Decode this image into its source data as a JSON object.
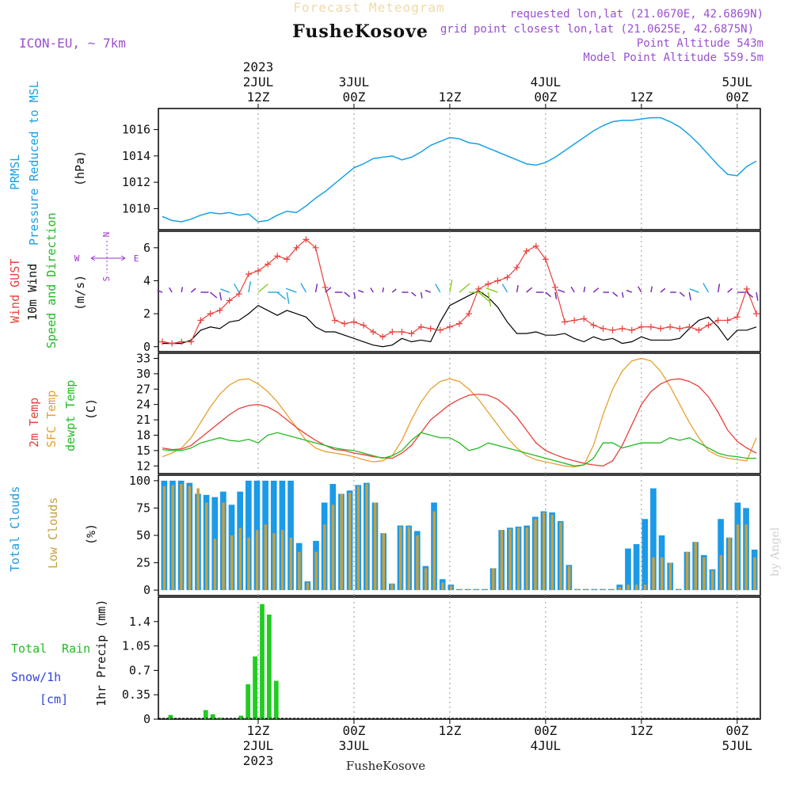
{
  "header": {
    "product": "Forecast Meteogram",
    "location": "FusheKosove",
    "model": "ICON-EU, ~ 7km",
    "requested": "requested lon,lat (21.0670E, 42.6869N)",
    "closest": "grid point closest lon,lat (21.0625E, 42.6875N)",
    "altitude": "Point Altitude 543m",
    "model_altitude": "Model Point Altitude 559.5m",
    "footer_location": "FusheKosove",
    "credit": "by Angel"
  },
  "colors": {
    "pressure": "#1aa0e6",
    "gust": "#e8403c",
    "wind": "#000000",
    "temp": "#e8403c",
    "sfc": "#e8a030",
    "dew": "#22bb22",
    "total_clouds": "#1a9ae8",
    "low_clouds": "#c8a040",
    "rain": "#22cc22",
    "snow": "#3344dd",
    "compass": "#9933cc"
  },
  "time_axis": {
    "hours_start": 0,
    "hours_end": 62,
    "top_ticks": [
      {
        "h": 10,
        "l1": "2023",
        "l2": "2JUL",
        "l3": "12Z"
      },
      {
        "h": 20,
        "l1": "",
        "l2": "3JUL",
        "l3": "00Z"
      },
      {
        "h": 30,
        "l1": "",
        "l2": "",
        "l3": "12Z"
      },
      {
        "h": 40,
        "l1": "",
        "l2": "4JUL",
        "l3": "00Z"
      },
      {
        "h": 50,
        "l1": "",
        "l2": "",
        "l3": "12Z"
      },
      {
        "h": 60,
        "l1": "",
        "l2": "5JUL",
        "l3": "00Z"
      }
    ],
    "bottom_ticks": [
      {
        "h": 10,
        "l1": "12Z",
        "l2": "2JUL",
        "l3": "2023"
      },
      {
        "h": 20,
        "l1": "00Z",
        "l2": "3JUL",
        "l3": ""
      },
      {
        "h": 30,
        "l1": "12Z",
        "l2": "",
        "l3": ""
      },
      {
        "h": 40,
        "l1": "00Z",
        "l2": "4JUL",
        "l3": ""
      },
      {
        "h": 50,
        "l1": "12Z",
        "l2": "",
        "l3": ""
      },
      {
        "h": 60,
        "l1": "00Z",
        "l2": "5JUL",
        "l3": ""
      }
    ]
  },
  "panels": {
    "pressure": {
      "labels": [
        "PRMSL",
        "Pressure Reduced to MSL",
        "(hPa)"
      ],
      "ticks": [
        "1010",
        "1012",
        "1014",
        "1016"
      ]
    },
    "wind": {
      "labels": [
        "Wind GUST",
        "10m Wind",
        "Speed and Direction",
        "(m/s)"
      ],
      "ticks": [
        "0",
        "2",
        "4",
        "6"
      ],
      "compass": {
        "n": "N",
        "s": "S",
        "w": "W",
        "e": "E"
      }
    },
    "temp": {
      "labels": [
        "2m Temp",
        "SFC Temp",
        "dewpt Temp",
        "(C)"
      ],
      "ticks": [
        "12",
        "15",
        "18",
        "21",
        "24",
        "27",
        "30",
        "33"
      ]
    },
    "cloud": {
      "labels": [
        "Total Clouds",
        "Low Clouds",
        "(%)"
      ],
      "ticks": [
        "0",
        "25",
        "50",
        "75",
        "100"
      ]
    },
    "precip": {
      "labels": [
        "Total",
        "Rain",
        "Snow/1h",
        "[cm]",
        "1hr Precip (mm)"
      ],
      "ticks": [
        "0",
        "0.35",
        "0.7",
        "1.05",
        "1.4"
      ]
    }
  },
  "chart_data": {
    "type": "meteogram",
    "title": "Forecast Meteogram FusheKosove",
    "x_unit": "hours from 2 JUL 2023 02Z",
    "pressure": {
      "name": "PRMSL (hPa)",
      "ylim": [
        1008.4,
        1017.6
      ],
      "x": [
        0,
        1,
        2,
        3,
        4,
        5,
        6,
        7,
        8,
        9,
        10,
        11,
        12,
        13,
        14,
        15,
        16,
        17,
        18,
        19,
        20,
        21,
        22,
        23,
        24,
        25,
        26,
        27,
        28,
        29,
        30,
        31,
        32,
        33,
        34,
        35,
        36,
        37,
        38,
        39,
        40,
        41,
        42,
        43,
        44,
        45,
        46,
        47,
        48,
        49,
        50,
        51,
        52,
        53,
        54,
        55,
        56,
        57,
        58,
        59,
        60,
        61,
        62
      ],
      "values": [
        1009.4,
        1009.1,
        1009.0,
        1009.2,
        1009.5,
        1009.7,
        1009.6,
        1009.7,
        1009.5,
        1009.6,
        1009.0,
        1009.1,
        1009.5,
        1009.8,
        1009.7,
        1010.2,
        1010.8,
        1011.3,
        1011.9,
        1012.5,
        1013.1,
        1013.4,
        1013.8,
        1013.9,
        1014.0,
        1013.7,
        1013.9,
        1014.3,
        1014.8,
        1015.1,
        1015.4,
        1015.3,
        1015.0,
        1014.9,
        1014.6,
        1014.3,
        1014.0,
        1013.7,
        1013.4,
        1013.3,
        1013.5,
        1013.9,
        1014.4,
        1014.9,
        1015.4,
        1015.9,
        1016.3,
        1016.6,
        1016.7,
        1016.7,
        1016.8,
        1016.9,
        1016.9,
        1016.6,
        1016.2,
        1015.6,
        1014.9,
        1014.1,
        1013.3,
        1012.6,
        1012.5,
        1013.2,
        1013.6
      ]
    },
    "wind": {
      "ylim": [
        -0.3,
        7.0
      ],
      "x": [
        0,
        1,
        2,
        3,
        4,
        5,
        6,
        7,
        8,
        9,
        10,
        11,
        12,
        13,
        14,
        15,
        16,
        17,
        18,
        19,
        20,
        21,
        22,
        23,
        24,
        25,
        26,
        27,
        28,
        29,
        30,
        31,
        32,
        33,
        34,
        35,
        36,
        37,
        38,
        39,
        40,
        41,
        42,
        43,
        44,
        45,
        46,
        47,
        48,
        49,
        50,
        51,
        52,
        53,
        54,
        55,
        56,
        57,
        58,
        59,
        60,
        61,
        62
      ],
      "wind_speed": [
        0.2,
        0.2,
        0.2,
        0.4,
        1.0,
        1.2,
        1.1,
        1.5,
        1.6,
        2.0,
        2.5,
        2.2,
        1.9,
        2.2,
        2.0,
        1.8,
        1.2,
        0.9,
        0.9,
        0.7,
        0.5,
        0.3,
        0.1,
        0.0,
        0.1,
        0.5,
        0.3,
        0.4,
        0.3,
        1.5,
        2.5,
        2.8,
        3.1,
        3.4,
        3.0,
        2.4,
        1.5,
        0.8,
        0.8,
        0.9,
        0.7,
        0.7,
        0.8,
        0.5,
        0.3,
        0.6,
        0.4,
        0.5,
        0.2,
        0.3,
        0.6,
        0.4,
        0.4,
        0.4,
        0.5,
        1.1,
        1.6,
        1.8,
        1.2,
        0.4,
        1.0,
        1.0,
        1.2
      ],
      "gust": [
        0.3,
        0.2,
        0.3,
        0.3,
        1.6,
        2.0,
        2.2,
        2.8,
        3.2,
        4.4,
        4.6,
        5.0,
        5.5,
        5.3,
        6.0,
        6.5,
        6.0,
        3.6,
        1.6,
        1.4,
        1.5,
        1.3,
        0.9,
        0.6,
        0.9,
        0.9,
        0.8,
        1.2,
        1.1,
        1.0,
        1.2,
        1.4,
        2.0,
        3.5,
        3.8,
        4.0,
        4.2,
        4.8,
        5.8,
        6.1,
        5.3,
        3.6,
        1.5,
        1.6,
        1.7,
        1.3,
        1.1,
        1.0,
        1.1,
        1.0,
        1.2,
        1.2,
        1.1,
        1.2,
        1.1,
        1.2,
        1.0,
        1.3,
        1.6,
        1.6,
        1.8,
        3.5,
        2.0
      ]
    },
    "temperature": {
      "ylim": [
        10.5,
        34.0
      ],
      "x": [
        0,
        1,
        2,
        3,
        4,
        5,
        6,
        7,
        8,
        9,
        10,
        11,
        12,
        13,
        14,
        15,
        16,
        17,
        18,
        19,
        20,
        21,
        22,
        23,
        24,
        25,
        26,
        27,
        28,
        29,
        30,
        31,
        32,
        33,
        34,
        35,
        36,
        37,
        38,
        39,
        40,
        41,
        42,
        43,
        44,
        45,
        46,
        47,
        48,
        49,
        50,
        51,
        52,
        53,
        54,
        55,
        56,
        57,
        58,
        59,
        60,
        61,
        62
      ],
      "t2m": [
        15.5,
        15.2,
        15.3,
        16.0,
        17.5,
        19.0,
        20.5,
        22.0,
        23.2,
        23.8,
        24.0,
        23.5,
        22.5,
        21.0,
        19.5,
        18.2,
        17.0,
        16.0,
        15.2,
        15.0,
        14.5,
        14.2,
        13.8,
        13.6,
        13.5,
        14.5,
        16.0,
        18.5,
        21.0,
        22.5,
        24.0,
        25.0,
        25.8,
        26.0,
        25.8,
        25.0,
        23.5,
        21.5,
        19.0,
        16.5,
        15.0,
        14.2,
        13.5,
        13.0,
        12.5,
        12.2,
        12.0,
        13.0,
        16.0,
        20.0,
        24.0,
        26.5,
        28.0,
        28.8,
        29.0,
        28.5,
        27.5,
        25.5,
        22.5,
        19.0,
        16.8,
        15.5,
        14.5
      ],
      "sfc": [
        13.8,
        14.5,
        15.5,
        17.5,
        20.5,
        23.5,
        26.0,
        27.8,
        28.8,
        29.0,
        28.0,
        26.5,
        24.5,
        22.0,
        19.5,
        17.0,
        15.5,
        14.8,
        14.5,
        14.2,
        13.8,
        13.2,
        12.8,
        13.0,
        14.0,
        17.0,
        21.0,
        24.5,
        27.0,
        28.5,
        29.0,
        28.5,
        27.0,
        25.0,
        22.5,
        20.0,
        17.5,
        15.5,
        14.0,
        13.2,
        12.8,
        12.4,
        12.0,
        11.8,
        12.2,
        16.0,
        22.0,
        27.0,
        30.5,
        32.5,
        33.0,
        32.5,
        30.5,
        27.5,
        24.0,
        20.5,
        17.5,
        15.0,
        14.0,
        13.5,
        13.2,
        13.0,
        17.5
      ],
      "dewpoint": [
        15.2,
        15.0,
        15.0,
        15.5,
        16.5,
        17.0,
        17.5,
        17.0,
        16.8,
        17.2,
        16.5,
        18.0,
        18.5,
        18.0,
        17.5,
        17.0,
        16.5,
        16.0,
        15.5,
        15.2,
        15.0,
        14.5,
        14.0,
        13.5,
        14.0,
        15.0,
        17.0,
        18.5,
        18.0,
        17.5,
        17.5,
        16.5,
        15.0,
        15.5,
        16.5,
        16.0,
        15.5,
        15.0,
        14.5,
        14.0,
        13.5,
        13.0,
        12.5,
        12.0,
        12.2,
        13.5,
        16.5,
        16.5,
        15.5,
        16.0,
        16.5,
        16.5,
        16.5,
        17.5,
        17.0,
        17.5,
        16.5,
        15.5,
        14.5,
        14.0,
        13.8,
        13.5,
        13.5
      ]
    },
    "clouds": {
      "ylim": [
        -5,
        105
      ],
      "total": [
        100,
        100,
        100,
        98,
        88,
        87,
        85,
        90,
        78,
        90,
        100,
        100,
        100,
        100,
        100,
        100,
        43,
        8,
        45,
        80,
        97,
        88,
        91,
        96,
        98,
        80,
        52,
        6,
        59,
        59,
        54,
        22,
        80,
        10,
        5,
        1,
        1,
        1,
        1,
        20,
        55,
        57,
        58,
        59,
        67,
        72,
        71,
        63,
        23,
        1,
        1,
        1,
        1,
        1,
        5,
        38,
        42,
        65,
        93,
        50,
        25,
        1,
        35,
        44,
        32,
        19,
        65,
        48,
        80,
        75,
        37
      ],
      "low": [
        95,
        96,
        97,
        95,
        93,
        80,
        47,
        80,
        50,
        57,
        48,
        55,
        60,
        52,
        55,
        48,
        35,
        7,
        35,
        60,
        78,
        88,
        89,
        95,
        97,
        80,
        52,
        6,
        58,
        58,
        50,
        20,
        72,
        7,
        4,
        1,
        1,
        1,
        1,
        20,
        55,
        56,
        57,
        57,
        65,
        71,
        69,
        62,
        22,
        1,
        1,
        1,
        1,
        1,
        3,
        5,
        5,
        5,
        30,
        30,
        25,
        1,
        35,
        44,
        30,
        18,
        32,
        48,
        60,
        60,
        30
      ]
    },
    "precip": {
      "ylim": [
        0,
        1.75
      ],
      "total_rain": [
        0,
        0.06,
        0,
        0,
        0,
        0,
        0.13,
        0.07,
        0.02,
        0,
        0,
        0.05,
        0.5,
        0.9,
        1.65,
        1.5,
        0.55,
        0,
        0,
        0,
        0,
        0,
        0,
        0,
        0,
        0,
        0,
        0,
        0,
        0,
        0,
        0,
        0,
        0,
        0,
        0,
        0,
        0,
        0,
        0,
        0,
        0,
        0,
        0,
        0,
        0,
        0,
        0,
        0,
        0,
        0,
        0,
        0,
        0,
        0,
        0,
        0,
        0,
        0,
        0,
        0,
        0,
        0,
        0,
        0,
        0,
        0,
        0,
        0,
        0,
        0,
        0,
        0,
        0,
        0,
        0,
        0,
        0,
        0,
        0,
        0,
        0,
        0,
        0,
        0
      ],
      "snow": []
    }
  }
}
